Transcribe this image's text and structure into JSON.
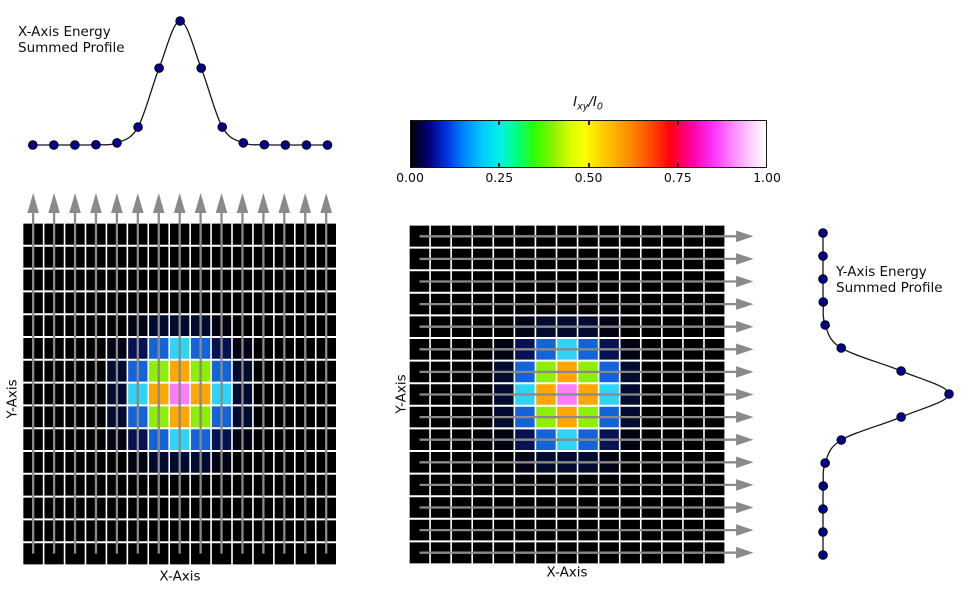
{
  "figure": {
    "background": "#ffffff"
  },
  "chart_data": [
    {
      "id": "x_profile",
      "type": "line",
      "title_lines": [
        "X-Axis Energy",
        "Summed Profile"
      ],
      "x": [
        0,
        1,
        2,
        3,
        4,
        5,
        6,
        7,
        8,
        9,
        10,
        11,
        12,
        13,
        14
      ],
      "values": [
        0,
        0,
        0,
        0.002,
        0.017,
        0.145,
        0.62,
        1.0,
        0.62,
        0.145,
        0.017,
        0.002,
        0,
        0,
        0
      ],
      "ylim": [
        0,
        1
      ],
      "marker": "filled-circle",
      "marker_color": "#000090",
      "marker_edge_color": "#000000",
      "line_color": "#15151f",
      "axes_visible": false
    },
    {
      "id": "beam_image_left",
      "type": "heatmap",
      "xlabel": "X-Axis",
      "ylabel": "Y-Axis",
      "rows": 15,
      "cols": 15,
      "peak_cell": [
        7,
        7
      ],
      "arrow_direction": "up",
      "arrow_meaning": "column sum",
      "normalized_value_by_d2": {
        "0": 1.0,
        "1": 0.66,
        "2": 0.44,
        "4": 0.19,
        "5": 0.13,
        "8": 0.037,
        "9": 0.024,
        "10": 0.016,
        "13": 0.005
      },
      "color_by_d2": {
        "0": "#fb7ef8",
        "1": "#ffa600",
        "2": "#8cf000",
        "4": "#2fd3f6",
        "5": "#1364d9",
        "8": "#061253",
        "9": "#010b30",
        "10": "#010b30",
        "13": "#020414"
      },
      "background": "#000000",
      "gridline_color": "#ffffff",
      "arrow_color": "#8a8a8a"
    },
    {
      "id": "colorbar",
      "type": "colorbar",
      "title_parts": {
        "main1": "I",
        "sub1": "xy",
        "main2": "/I",
        "sub2": "0"
      },
      "tick_labels": [
        "0.00",
        "0.25",
        "0.50",
        "0.75",
        "1.00"
      ],
      "tick_values": [
        0,
        0.25,
        0.5,
        0.75,
        1
      ],
      "minor_tick_values": [
        0.25,
        0.5,
        0.75
      ],
      "gradient_stops": [
        [
          0.0,
          "#000000"
        ],
        [
          0.05,
          "#00007d"
        ],
        [
          0.1,
          "#0032dc"
        ],
        [
          0.15,
          "#0087ff"
        ],
        [
          0.2,
          "#00c8ff"
        ],
        [
          0.25,
          "#00f2e6"
        ],
        [
          0.3,
          "#00ff7b"
        ],
        [
          0.35,
          "#2eff00"
        ],
        [
          0.4,
          "#8cf000"
        ],
        [
          0.45,
          "#d8ff00"
        ],
        [
          0.49,
          "#ffff00"
        ],
        [
          0.55,
          "#ffc400"
        ],
        [
          0.62,
          "#ff8800"
        ],
        [
          0.68,
          "#ff4400"
        ],
        [
          0.73,
          "#ff000f"
        ],
        [
          0.79,
          "#ff00a0"
        ],
        [
          0.85,
          "#fb30fb"
        ],
        [
          0.91,
          "#ff8dff"
        ],
        [
          0.96,
          "#ffd2ff"
        ],
        [
          1.0,
          "#ffffff"
        ]
      ]
    },
    {
      "id": "beam_image_right",
      "type": "heatmap",
      "xlabel": "X-Axis",
      "ylabel": "Y-Axis",
      "rows": 15,
      "cols": 15,
      "peak_cell": [
        7,
        7
      ],
      "arrow_direction": "right",
      "arrow_meaning": "row sum",
      "normalized_value_by_d2": {
        "0": 1.0,
        "1": 0.66,
        "2": 0.44,
        "4": 0.19,
        "5": 0.13,
        "8": 0.037,
        "9": 0.024,
        "10": 0.016,
        "13": 0.005
      },
      "color_by_d2": {
        "0": "#fb7ef8",
        "1": "#ffa600",
        "2": "#8cf000",
        "4": "#2fd3f6",
        "5": "#1364d9",
        "8": "#061253",
        "9": "#010b30",
        "10": "#010b30",
        "13": "#020414"
      },
      "background": "#000000",
      "gridline_color": "#ffffff",
      "arrow_color": "#8a8a8a"
    },
    {
      "id": "y_profile",
      "type": "line",
      "orientation": "vertical",
      "title_lines": [
        "Y-Axis Energy",
        "Summed Profile"
      ],
      "x": [
        0,
        1,
        2,
        3,
        4,
        5,
        6,
        7,
        8,
        9,
        10,
        11,
        12,
        13,
        14
      ],
      "values": [
        0,
        0,
        0,
        0.002,
        0.017,
        0.145,
        0.62,
        1.0,
        0.62,
        0.145,
        0.017,
        0.002,
        0,
        0,
        0
      ],
      "ylim": [
        0,
        1
      ],
      "marker": "filled-circle",
      "marker_color": "#000090",
      "marker_edge_color": "#000000",
      "line_color": "#15151f",
      "axes_visible": false
    }
  ]
}
